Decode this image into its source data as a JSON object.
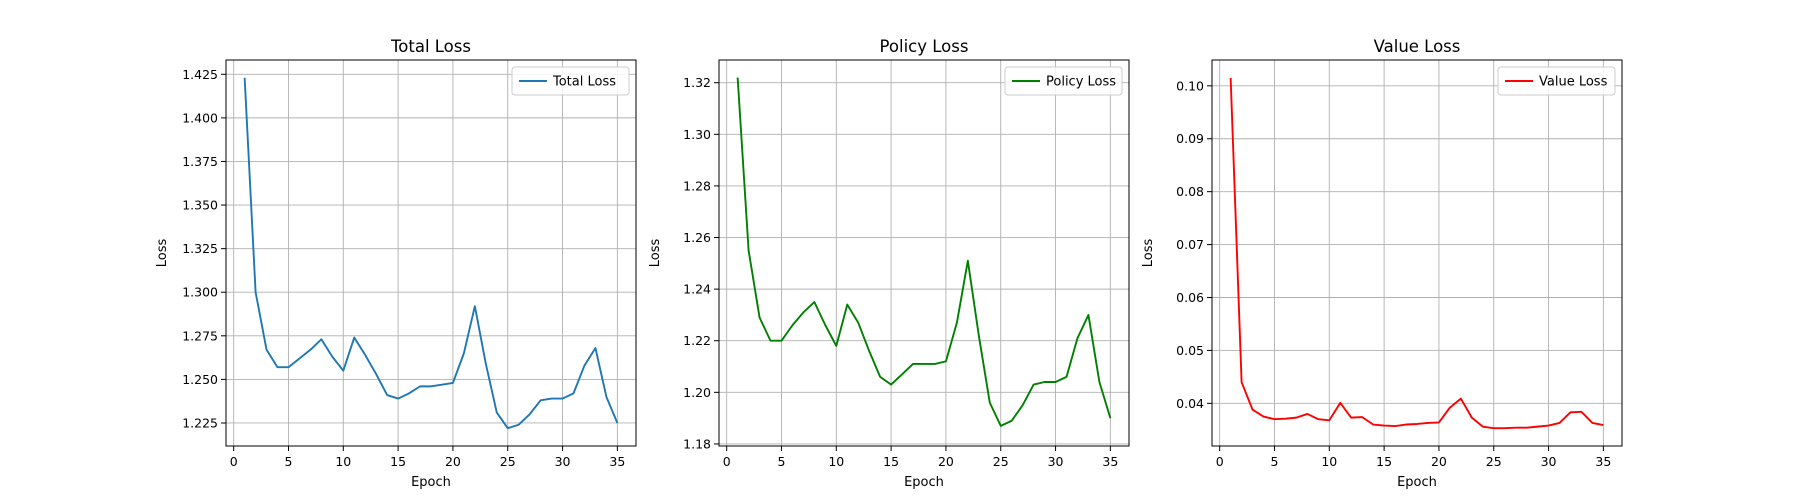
{
  "charts": [
    {
      "type": "line",
      "title": "Total Loss",
      "xlabel": "Epoch",
      "ylabel": "Loss",
      "grid": true,
      "legend_position": "top-right",
      "xlim": [
        -0.7,
        36.7
      ],
      "ylim": [
        1.2118,
        1.4332
      ],
      "xticks": [
        0,
        5,
        10,
        15,
        20,
        25,
        30,
        35
      ],
      "xtick_labels": [
        "0",
        "5",
        "10",
        "15",
        "20",
        "25",
        "30",
        "35"
      ],
      "yticks": [
        1.225,
        1.25,
        1.275,
        1.3,
        1.325,
        1.35,
        1.375,
        1.4,
        1.425
      ],
      "ytick_labels": [
        "1.225",
        "1.250",
        "1.275",
        "1.300",
        "1.325",
        "1.350",
        "1.375",
        "1.400",
        "1.425"
      ],
      "series": [
        {
          "name": "Total Loss",
          "color": "#1f77b4",
          "x": [
            1,
            2,
            3,
            4,
            5,
            6,
            7,
            8,
            9,
            10,
            11,
            12,
            13,
            14,
            15,
            16,
            17,
            18,
            19,
            20,
            21,
            22,
            23,
            24,
            25,
            26,
            27,
            28,
            29,
            30,
            31,
            32,
            33,
            34,
            35
          ],
          "y": [
            1.423,
            1.3,
            1.267,
            1.257,
            1.257,
            1.262,
            1.267,
            1.273,
            1.263,
            1.255,
            1.274,
            1.264,
            1.253,
            1.241,
            1.239,
            1.242,
            1.246,
            1.246,
            1.247,
            1.248,
            1.265,
            1.292,
            1.259,
            1.231,
            1.222,
            1.224,
            1.23,
            1.238,
            1.239,
            1.239,
            1.242,
            1.258,
            1.268,
            1.24,
            1.225
          ]
        }
      ]
    },
    {
      "type": "line",
      "title": "Policy Loss",
      "xlabel": "Epoch",
      "ylabel": "Loss",
      "grid": true,
      "legend_position": "top-right",
      "xlim": [
        -0.7,
        36.7
      ],
      "ylim": [
        1.1792,
        1.3288
      ],
      "xticks": [
        0,
        5,
        10,
        15,
        20,
        25,
        30,
        35
      ],
      "xtick_labels": [
        "0",
        "5",
        "10",
        "15",
        "20",
        "25",
        "30",
        "35"
      ],
      "yticks": [
        1.18,
        1.2,
        1.22,
        1.24,
        1.26,
        1.28,
        1.3,
        1.32
      ],
      "ytick_labels": [
        "1.18",
        "1.20",
        "1.22",
        "1.24",
        "1.26",
        "1.28",
        "1.30",
        "1.32"
      ],
      "series": [
        {
          "name": "Policy Loss",
          "color": "#008000",
          "x": [
            1,
            2,
            3,
            4,
            5,
            6,
            7,
            8,
            9,
            10,
            11,
            12,
            13,
            14,
            15,
            16,
            17,
            18,
            19,
            20,
            21,
            22,
            23,
            24,
            25,
            26,
            27,
            28,
            29,
            30,
            31,
            32,
            33,
            34,
            35
          ],
          "y": [
            1.322,
            1.255,
            1.229,
            1.22,
            1.22,
            1.226,
            1.231,
            1.235,
            1.226,
            1.218,
            1.234,
            1.227,
            1.216,
            1.206,
            1.203,
            1.207,
            1.211,
            1.211,
            1.211,
            1.212,
            1.227,
            1.251,
            1.222,
            1.196,
            1.187,
            1.189,
            1.195,
            1.203,
            1.204,
            1.204,
            1.206,
            1.221,
            1.23,
            1.204,
            1.19
          ]
        }
      ]
    },
    {
      "type": "line",
      "title": "Value Loss",
      "xlabel": "Epoch",
      "ylabel": "Loss",
      "grid": true,
      "legend_position": "top-right",
      "xlim": [
        -0.7,
        36.7
      ],
      "ylim": [
        0.03194,
        0.10488
      ],
      "xticks": [
        0,
        5,
        10,
        15,
        20,
        25,
        30,
        35
      ],
      "xtick_labels": [
        "0",
        "5",
        "10",
        "15",
        "20",
        "25",
        "30",
        "35"
      ],
      "yticks": [
        0.04,
        0.05,
        0.06,
        0.07,
        0.08,
        0.09,
        0.1
      ],
      "ytick_labels": [
        "0.04",
        "0.05",
        "0.06",
        "0.07",
        "0.08",
        "0.09",
        "0.10"
      ],
      "series": [
        {
          "name": "Value Loss",
          "color": "#ff0000",
          "x": [
            1,
            2,
            3,
            4,
            5,
            6,
            7,
            8,
            9,
            10,
            11,
            12,
            13,
            14,
            15,
            16,
            17,
            18,
            19,
            20,
            21,
            22,
            23,
            24,
            25,
            26,
            27,
            28,
            29,
            30,
            31,
            32,
            33,
            34,
            35
          ],
          "y": [
            0.1015,
            0.044,
            0.0388,
            0.0375,
            0.037,
            0.0371,
            0.0373,
            0.038,
            0.037,
            0.0368,
            0.0401,
            0.0373,
            0.0374,
            0.036,
            0.0358,
            0.0357,
            0.036,
            0.0361,
            0.0363,
            0.0364,
            0.0392,
            0.0409,
            0.0373,
            0.0356,
            0.0353,
            0.0353,
            0.0354,
            0.0354,
            0.0356,
            0.0358,
            0.0363,
            0.0383,
            0.0384,
            0.0363,
            0.0359
          ]
        }
      ]
    }
  ]
}
